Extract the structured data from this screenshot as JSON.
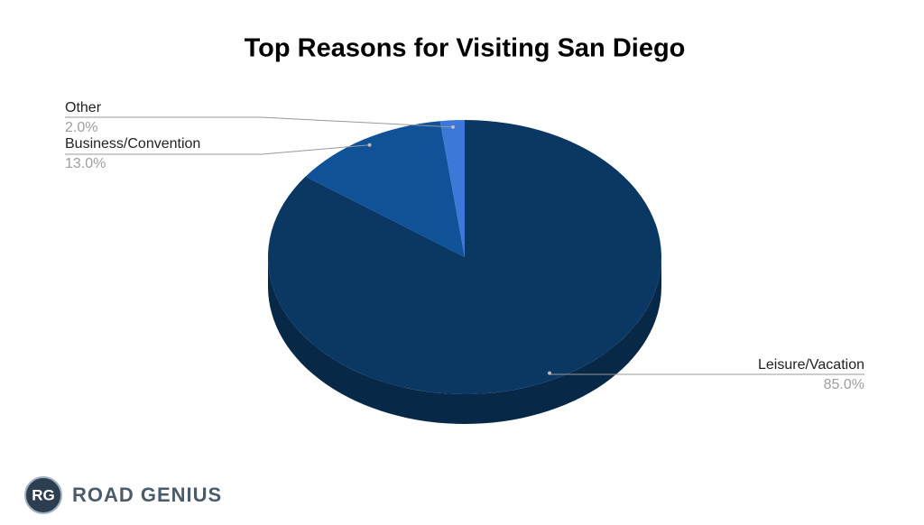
{
  "chart_data": {
    "type": "pie",
    "title": "Top Reasons for Visiting San Diego",
    "categories": [
      "Leisure/Vacation",
      "Business/Convention",
      "Other"
    ],
    "values": [
      85,
      13,
      2
    ],
    "value_labels": [
      "85.0%",
      "13.0%",
      "2.0%"
    ],
    "colors": [
      "#0b3763",
      "#0f5298",
      "#3c78d8"
    ]
  },
  "logo": {
    "initials": "RG",
    "name": "ROAD GENIUS"
  }
}
